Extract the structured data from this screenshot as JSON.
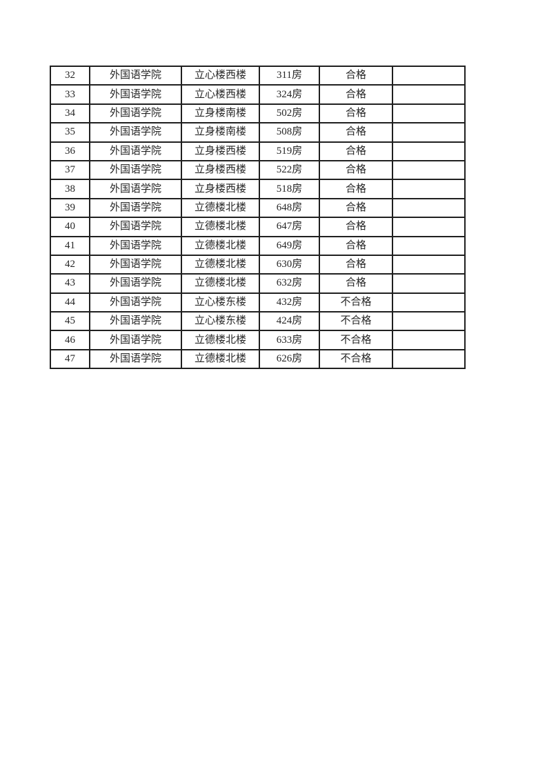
{
  "page": {
    "background_color": "#ffffff",
    "text_color": "#262626",
    "table_border_color": "#1f1f1f"
  },
  "table": {
    "columns": [
      "row_number",
      "college",
      "building",
      "room",
      "result",
      "note"
    ],
    "rows": [
      {
        "no": "32",
        "college": "外国语学院",
        "building": "立心楼西楼",
        "room": "311房",
        "result": "合格",
        "note": ""
      },
      {
        "no": "33",
        "college": "外国语学院",
        "building": "立心楼西楼",
        "room": "324房",
        "result": "合格",
        "note": ""
      },
      {
        "no": "34",
        "college": "外国语学院",
        "building": "立身楼南楼",
        "room": "502房",
        "result": "合格",
        "note": ""
      },
      {
        "no": "35",
        "college": "外国语学院",
        "building": "立身楼南楼",
        "room": "508房",
        "result": "合格",
        "note": ""
      },
      {
        "no": "36",
        "college": "外国语学院",
        "building": "立身楼西楼",
        "room": "519房",
        "result": "合格",
        "note": ""
      },
      {
        "no": "37",
        "college": "外国语学院",
        "building": "立身楼西楼",
        "room": "522房",
        "result": "合格",
        "note": ""
      },
      {
        "no": "38",
        "college": "外国语学院",
        "building": "立身楼西楼",
        "room": "518房",
        "result": "合格",
        "note": ""
      },
      {
        "no": "39",
        "college": "外国语学院",
        "building": "立德楼北楼",
        "room": "648房",
        "result": "合格",
        "note": ""
      },
      {
        "no": "40",
        "college": "外国语学院",
        "building": "立德楼北楼",
        "room": "647房",
        "result": "合格",
        "note": ""
      },
      {
        "no": "41",
        "college": "外国语学院",
        "building": "立德楼北楼",
        "room": "649房",
        "result": "合格",
        "note": ""
      },
      {
        "no": "42",
        "college": "外国语学院",
        "building": "立德楼北楼",
        "room": "630房",
        "result": "合格",
        "note": ""
      },
      {
        "no": "43",
        "college": "外国语学院",
        "building": "立德楼北楼",
        "room": "632房",
        "result": "合格",
        "note": ""
      },
      {
        "no": "44",
        "college": "外国语学院",
        "building": "立心楼东楼",
        "room": "432房",
        "result": "不合格",
        "note": ""
      },
      {
        "no": "45",
        "college": "外国语学院",
        "building": "立心楼东楼",
        "room": "424房",
        "result": "不合格",
        "note": ""
      },
      {
        "no": "46",
        "college": "外国语学院",
        "building": "立德楼北楼",
        "room": "633房",
        "result": "不合格",
        "note": ""
      },
      {
        "no": "47",
        "college": "外国语学院",
        "building": "立德楼北楼",
        "room": "626房",
        "result": "不合格",
        "note": ""
      }
    ]
  }
}
